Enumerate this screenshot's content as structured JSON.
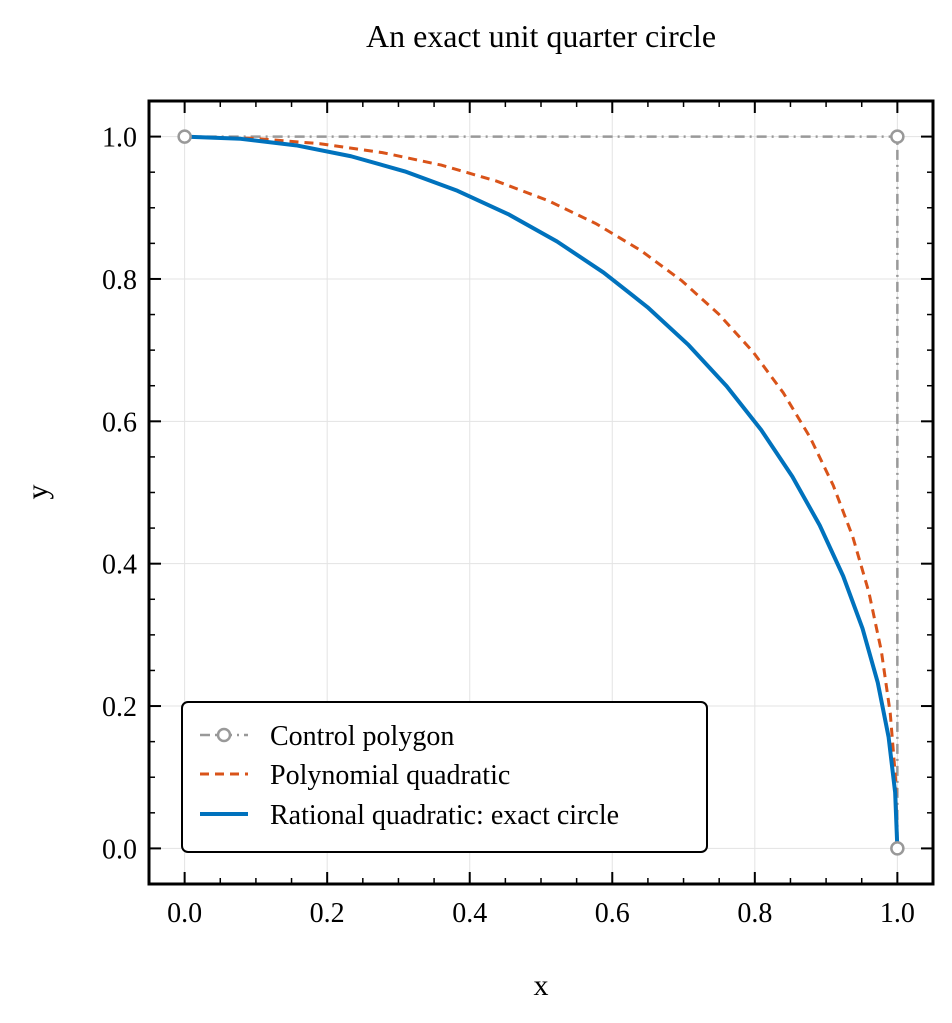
{
  "chart_data": {
    "type": "line",
    "title": "An exact unit quarter circle",
    "xlabel": "x",
    "ylabel": "y",
    "xlim": [
      -0.05,
      1.05
    ],
    "ylim": [
      -0.05,
      1.05
    ],
    "xticks": [
      "0.0",
      "0.2",
      "0.4",
      "0.6",
      "0.8",
      "1.0"
    ],
    "yticks": [
      "0.0",
      "0.2",
      "0.4",
      "0.6",
      "0.8",
      "1.0"
    ],
    "xtick_values": [
      0.0,
      0.2,
      0.4,
      0.6,
      0.8,
      1.0
    ],
    "ytick_values": [
      0.0,
      0.2,
      0.4,
      0.6,
      0.8,
      1.0
    ],
    "grid": true,
    "legend_position": "lower-left",
    "series": [
      {
        "name": "Control polygon",
        "style": "dash-dot with hollow circle markers",
        "color": "#999999",
        "x": [
          0.0,
          1.0,
          1.0
        ],
        "y": [
          1.0,
          1.0,
          0.0
        ]
      },
      {
        "name": "Polynomial quadratic",
        "style": "dashed",
        "color": "#D95319",
        "x": [
          0.0,
          0.0975,
          0.19,
          0.2775,
          0.36,
          0.4375,
          0.51,
          0.5775,
          0.64,
          0.6975,
          0.75,
          0.7975,
          0.84,
          0.8775,
          0.91,
          0.9375,
          0.96,
          0.9775,
          0.99,
          0.9975,
          1.0
        ],
        "y": [
          1.0,
          0.9975,
          0.99,
          0.9775,
          0.96,
          0.9375,
          0.91,
          0.8775,
          0.84,
          0.7975,
          0.75,
          0.6975,
          0.64,
          0.5775,
          0.51,
          0.4375,
          0.36,
          0.2775,
          0.19,
          0.0975,
          0.0
        ]
      },
      {
        "name": "Rational quadratic: exact circle",
        "style": "solid",
        "color": "#0072BD",
        "x": [
          0.0,
          0.0785,
          0.1564,
          0.2334,
          0.309,
          0.3827,
          0.454,
          0.5225,
          0.5878,
          0.6494,
          0.7071,
          0.7604,
          0.809,
          0.8526,
          0.891,
          0.9239,
          0.9511,
          0.9724,
          0.9877,
          0.9969,
          1.0
        ],
        "y": [
          1.0,
          0.9969,
          0.9877,
          0.9724,
          0.9511,
          0.9239,
          0.891,
          0.8526,
          0.809,
          0.7604,
          0.7071,
          0.6494,
          0.5878,
          0.5225,
          0.454,
          0.3827,
          0.309,
          0.2334,
          0.1564,
          0.0785,
          0.0
        ]
      }
    ]
  }
}
